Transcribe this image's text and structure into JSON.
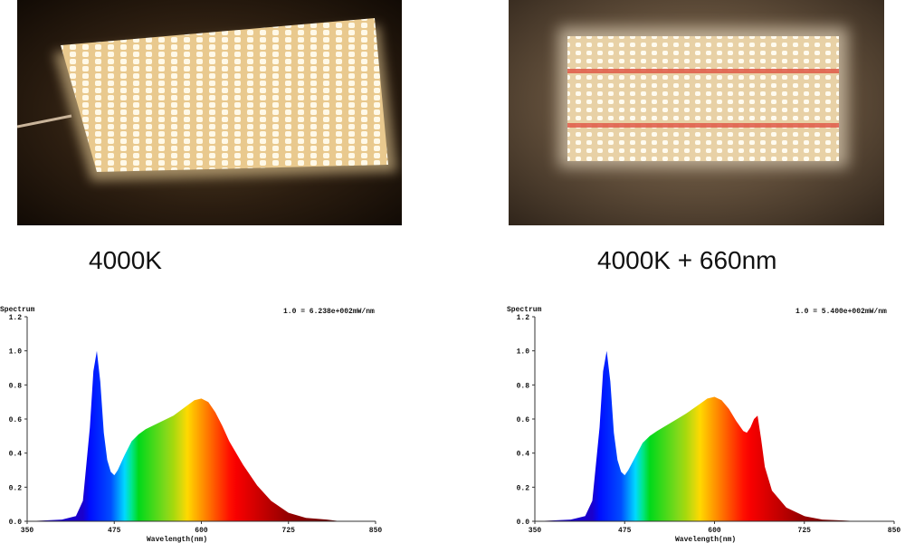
{
  "panels": [
    {
      "caption": "4000K",
      "photo": "led panel white 4000K",
      "chart_data": {
        "type": "area",
        "title": "Spectrum",
        "annotation": "1.0 = 6.238e+002mW/nm",
        "xlabel": "Wavelength(nm)",
        "ylabel": "",
        "xlim": [
          350,
          850
        ],
        "ylim": [
          0,
          1.2
        ],
        "xticks": [
          "350",
          "475",
          "600",
          "725",
          "850"
        ],
        "yticks": [
          "0.0",
          "0.2",
          "0.4",
          "0.6",
          "0.8",
          "1.0",
          "1.2"
        ],
        "x": [
          350,
          400,
          420,
          430,
          440,
          445,
          450,
          455,
          460,
          465,
          470,
          475,
          480,
          490,
          500,
          510,
          520,
          540,
          560,
          580,
          590,
          600,
          610,
          620,
          630,
          640,
          660,
          680,
          700,
          725,
          750,
          780,
          800,
          850
        ],
        "y": [
          0.0,
          0.01,
          0.03,
          0.12,
          0.55,
          0.88,
          1.0,
          0.82,
          0.52,
          0.36,
          0.29,
          0.27,
          0.3,
          0.39,
          0.47,
          0.51,
          0.54,
          0.58,
          0.62,
          0.68,
          0.71,
          0.72,
          0.7,
          0.64,
          0.56,
          0.47,
          0.33,
          0.21,
          0.12,
          0.05,
          0.02,
          0.01,
          0.0,
          0.0
        ]
      }
    },
    {
      "caption": "4000K + 660nm",
      "photo": "led panel white plus red 660nm rows",
      "chart_data": {
        "type": "area",
        "title": "Spectrum",
        "annotation": "1.0 = 5.400e+002mW/nm",
        "xlabel": "Wavelength(nm)",
        "ylabel": "",
        "xlim": [
          350,
          850
        ],
        "ylim": [
          0,
          1.2
        ],
        "xticks": [
          "350",
          "475",
          "600",
          "725",
          "850"
        ],
        "yticks": [
          "0.0",
          "0.2",
          "0.4",
          "0.6",
          "0.8",
          "1.0",
          "1.2"
        ],
        "x": [
          350,
          400,
          420,
          430,
          440,
          445,
          450,
          455,
          460,
          465,
          470,
          475,
          480,
          490,
          500,
          510,
          520,
          540,
          560,
          580,
          590,
          600,
          610,
          620,
          630,
          640,
          645,
          650,
          655,
          660,
          665,
          670,
          680,
          700,
          725,
          750,
          780,
          800,
          850
        ],
        "y": [
          0.0,
          0.01,
          0.03,
          0.12,
          0.55,
          0.88,
          1.0,
          0.82,
          0.52,
          0.36,
          0.29,
          0.27,
          0.3,
          0.38,
          0.46,
          0.5,
          0.53,
          0.58,
          0.63,
          0.69,
          0.72,
          0.73,
          0.71,
          0.66,
          0.59,
          0.53,
          0.52,
          0.55,
          0.6,
          0.62,
          0.48,
          0.32,
          0.18,
          0.08,
          0.03,
          0.01,
          0.005,
          0.0,
          0.0
        ]
      }
    }
  ]
}
